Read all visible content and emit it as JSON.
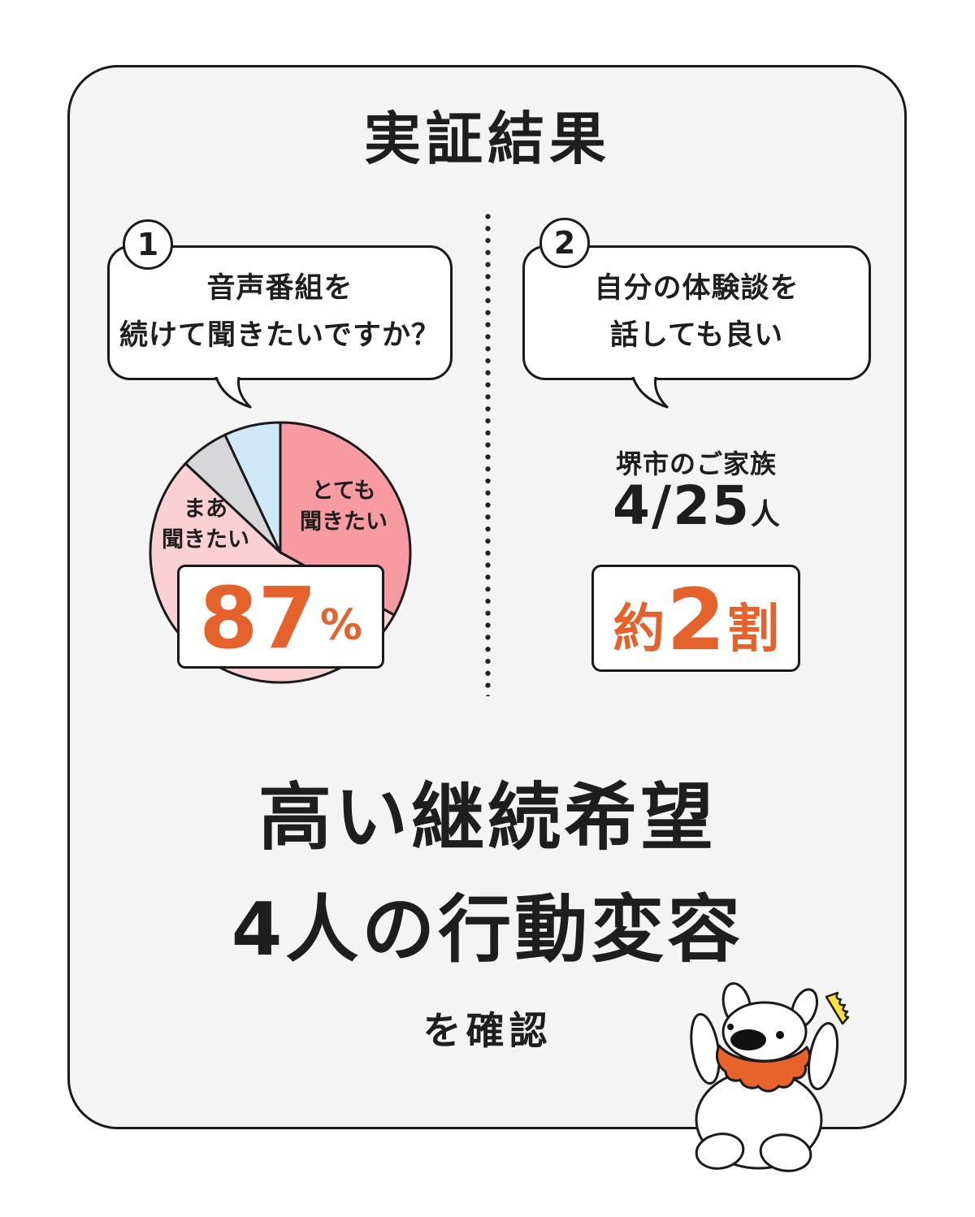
{
  "title": "実証結果",
  "panels": {
    "left": {
      "badge": "1",
      "bubble_line1": "音声番組を",
      "bubble_line2": "続けて聞きたいですか？",
      "callout_value": "87",
      "callout_unit": "%"
    },
    "right": {
      "badge": "2",
      "bubble_line1": "自分の体験談を",
      "bubble_line2": "話しても良い",
      "group_label": "堺市のご家族",
      "count_value": "4/25",
      "count_unit": "人",
      "callout_prefix": "約",
      "callout_value": "2",
      "callout_suffix": "割"
    }
  },
  "chart_data": {
    "type": "pie",
    "title": "音声番組を続けて聞きたいですか？",
    "unit": "percent",
    "direction": "clockwise",
    "start_angle_deg": 0,
    "slices": [
      {
        "label": "とても\n聞きたい",
        "value": 33,
        "color": "#f89aa1"
      },
      {
        "label": "まあ\n聞きたい",
        "value": 54,
        "color": "#fbd0d5"
      },
      {
        "label": "",
        "value": 6,
        "color": "#d7d7d9"
      },
      {
        "label": "",
        "value": 7,
        "color": "#cfe8f7"
      }
    ],
    "callout": "87%",
    "legend_position": "none",
    "grid": false
  },
  "conclusion": {
    "line1": "高い継続希望",
    "line2": "4人の行動変容",
    "line3": "を確認"
  },
  "colors": {
    "accent_orange": "#e5622c",
    "ink": "#1e1e1e",
    "card_bg": "#f4f4f4",
    "spark_yellow": "#ffe13a",
    "pie_outline": "#1a1a1a"
  },
  "mascot": {
    "name": "dog-mascot"
  }
}
